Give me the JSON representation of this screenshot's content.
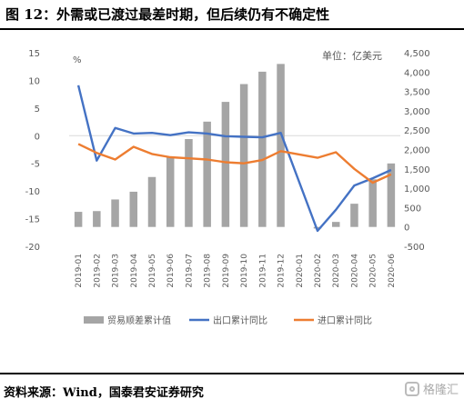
{
  "header": {
    "title": "图 12：外需或已渡过最差时期，但后续仍有不确定性"
  },
  "footer": {
    "source": "资料来源：Wind，国泰君安证券研究",
    "watermark": "格隆汇"
  },
  "colors": {
    "bar": "#a5a5a5",
    "export_line": "#4472c4",
    "import_line": "#ed7d31",
    "axis_text": "#595959",
    "axis_line": "#d9d9d9"
  },
  "chart_data": {
    "type": "bar",
    "left_unit": "%",
    "right_unit": "单位：亿美元",
    "categories": [
      "2019-01",
      "2019-02",
      "2019-03",
      "2019-04",
      "2019-05",
      "2019-06",
      "2019-07",
      "2019-08",
      "2019-09",
      "2019-10",
      "2019-11",
      "2019-12",
      "2020-01",
      "2020-02",
      "2020-03",
      "2020-04",
      "2020-05",
      "2020-06"
    ],
    "left_axis": {
      "min": -20,
      "max": 15,
      "step": 5
    },
    "right_axis": {
      "min": -500,
      "max": 4500,
      "step": 500
    },
    "series": [
      {
        "name": "贸易顺差累计值",
        "type": "bar",
        "axis": "right",
        "values": [
          390,
          410,
          710,
          910,
          1290,
          1800,
          2270,
          2720,
          3230,
          3690,
          4010,
          4210,
          null,
          -40,
          130,
          600,
          1230,
          1640
        ]
      },
      {
        "name": "出口累计同比",
        "type": "line",
        "axis": "left",
        "values": [
          9.1,
          -4.5,
          1.4,
          0.4,
          0.5,
          0.1,
          0.6,
          0.4,
          -0.1,
          -0.2,
          -0.3,
          0.5,
          null,
          -17.2,
          -13.4,
          -9.0,
          -7.7,
          -6.2
        ]
      },
      {
        "name": "进口累计同比",
        "type": "line",
        "axis": "left",
        "values": [
          -1.5,
          -3.1,
          -4.3,
          -2.0,
          -3.3,
          -3.9,
          -4.1,
          -4.3,
          -4.8,
          -5.0,
          -4.4,
          -2.8,
          null,
          -4.0,
          -3.0,
          -6.0,
          -8.5,
          -7.0
        ]
      }
    ],
    "legend_position": "bottom"
  }
}
